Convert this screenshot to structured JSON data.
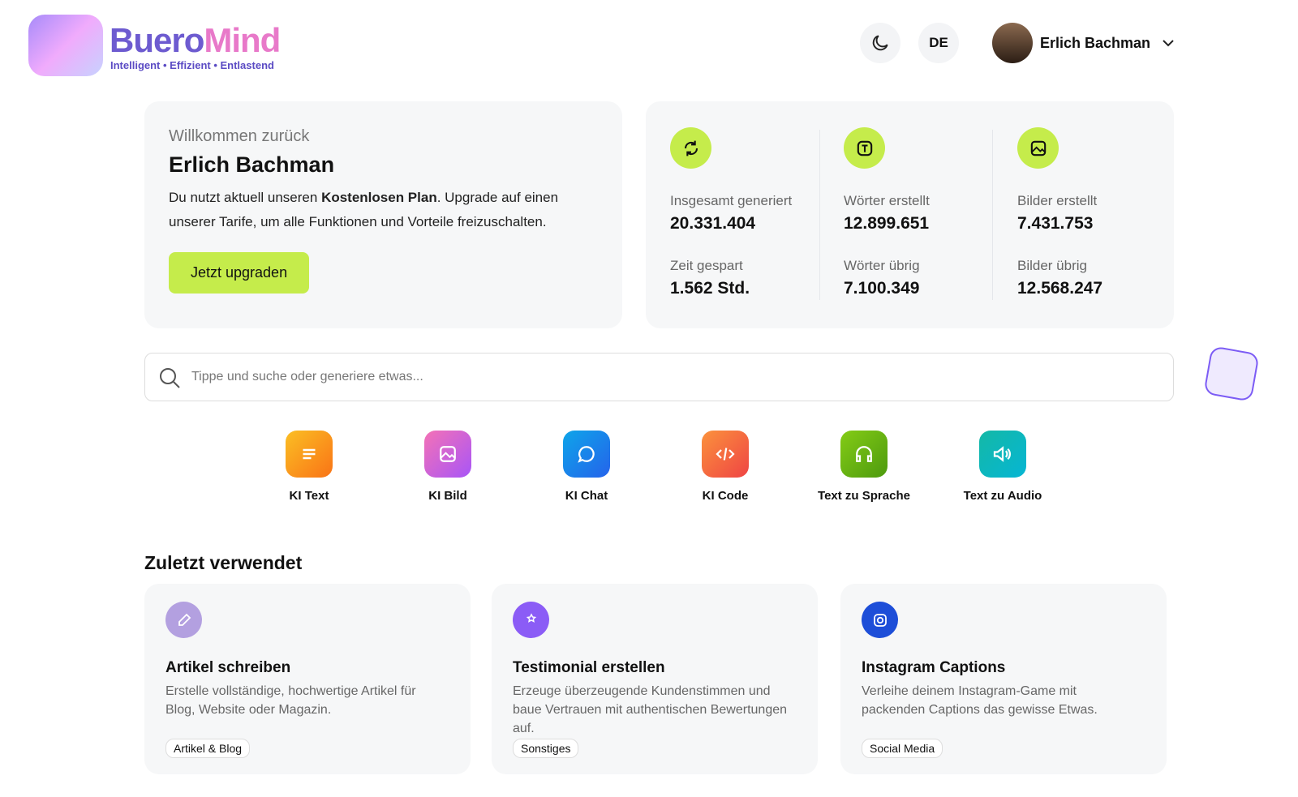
{
  "header": {
    "brand_first": "Buero",
    "brand_second": "Mind",
    "tagline": "Intelligent • Effizient • Entlastend",
    "language": "DE",
    "user_name": "Erlich Bachman"
  },
  "welcome": {
    "greeting": "Willkommen zurück",
    "name": "Erlich Bachman",
    "text_before": "Du nutzt aktuell unseren ",
    "plan": "Kostenlosen Plan",
    "text_after": ". Upgrade auf einen unserer Tarife, um alle Funktionen und Vorteile freizuschalten.",
    "button": "Jetzt upgraden"
  },
  "stats": [
    {
      "label": "Insgesamt generiert",
      "value": "20.331.404",
      "label2": "Zeit gespart",
      "value2": "1.562 Std."
    },
    {
      "label": "Wörter erstellt",
      "value": "12.899.651",
      "label2": "Wörter übrig",
      "value2": "7.100.349"
    },
    {
      "label": "Bilder erstellt",
      "value": "7.431.753",
      "label2": "Bilder übrig",
      "value2": "12.568.247"
    }
  ],
  "search": {
    "placeholder": "Tippe und suche oder generiere etwas..."
  },
  "tools": [
    "KI Text",
    "KI Bild",
    "KI Chat",
    "KI Code",
    "Text zu Sprache",
    "Text zu Audio"
  ],
  "recent": {
    "title": "Zuletzt verwendet",
    "cards": [
      {
        "title": "Artikel schreiben",
        "description": "Erstelle vollständige, hochwertige Artikel für Blog, Website oder Magazin.",
        "tag": "Artikel & Blog"
      },
      {
        "title": "Testimonial erstellen",
        "description": "Erzeuge überzeugende Kundenstimmen und baue Vertrauen mit authentischen Bewertungen auf.",
        "tag": "Sonstiges"
      },
      {
        "title": "Instagram Captions",
        "description": "Verleihe deinem Instagram-Game mit packenden Captions das gewisse Etwas.",
        "tag": "Social Media"
      }
    ]
  }
}
